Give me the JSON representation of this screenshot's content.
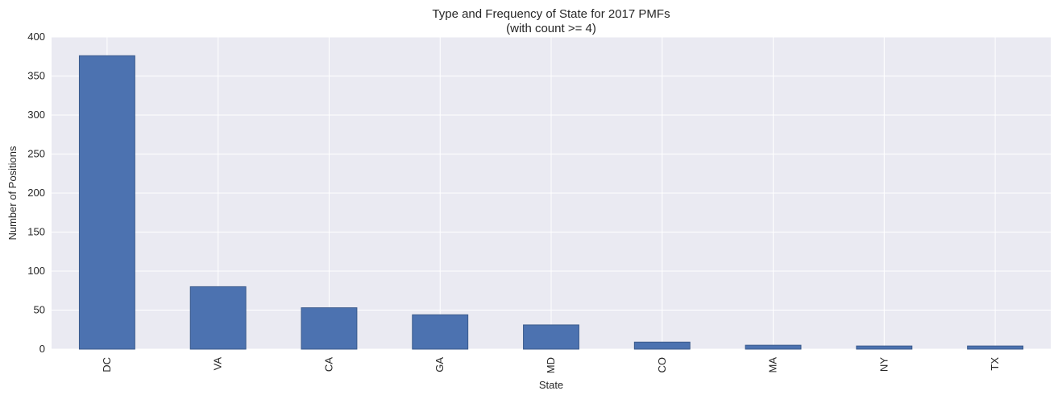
{
  "chart_data": {
    "type": "bar",
    "title": "Type and Frequency of State for 2017 PMFs",
    "subtitle": "(with count >= 4)",
    "xlabel": "State",
    "ylabel": "Number of Positions",
    "categories": [
      "DC",
      "VA",
      "CA",
      "GA",
      "MD",
      "CO",
      "MA",
      "NY",
      "TX"
    ],
    "values": [
      376,
      80,
      53,
      44,
      31,
      9,
      5,
      4,
      4
    ],
    "ylim": [
      0,
      400
    ],
    "yticks": [
      0,
      50,
      100,
      150,
      200,
      250,
      300,
      350,
      400
    ],
    "grid": true,
    "legend": "none",
    "colors": {
      "bar": "#4c72b0",
      "bar_edge": "#3a5a8c",
      "plot_background": "#eaeaf2",
      "grid": "#ffffff",
      "text": "#262626"
    }
  }
}
